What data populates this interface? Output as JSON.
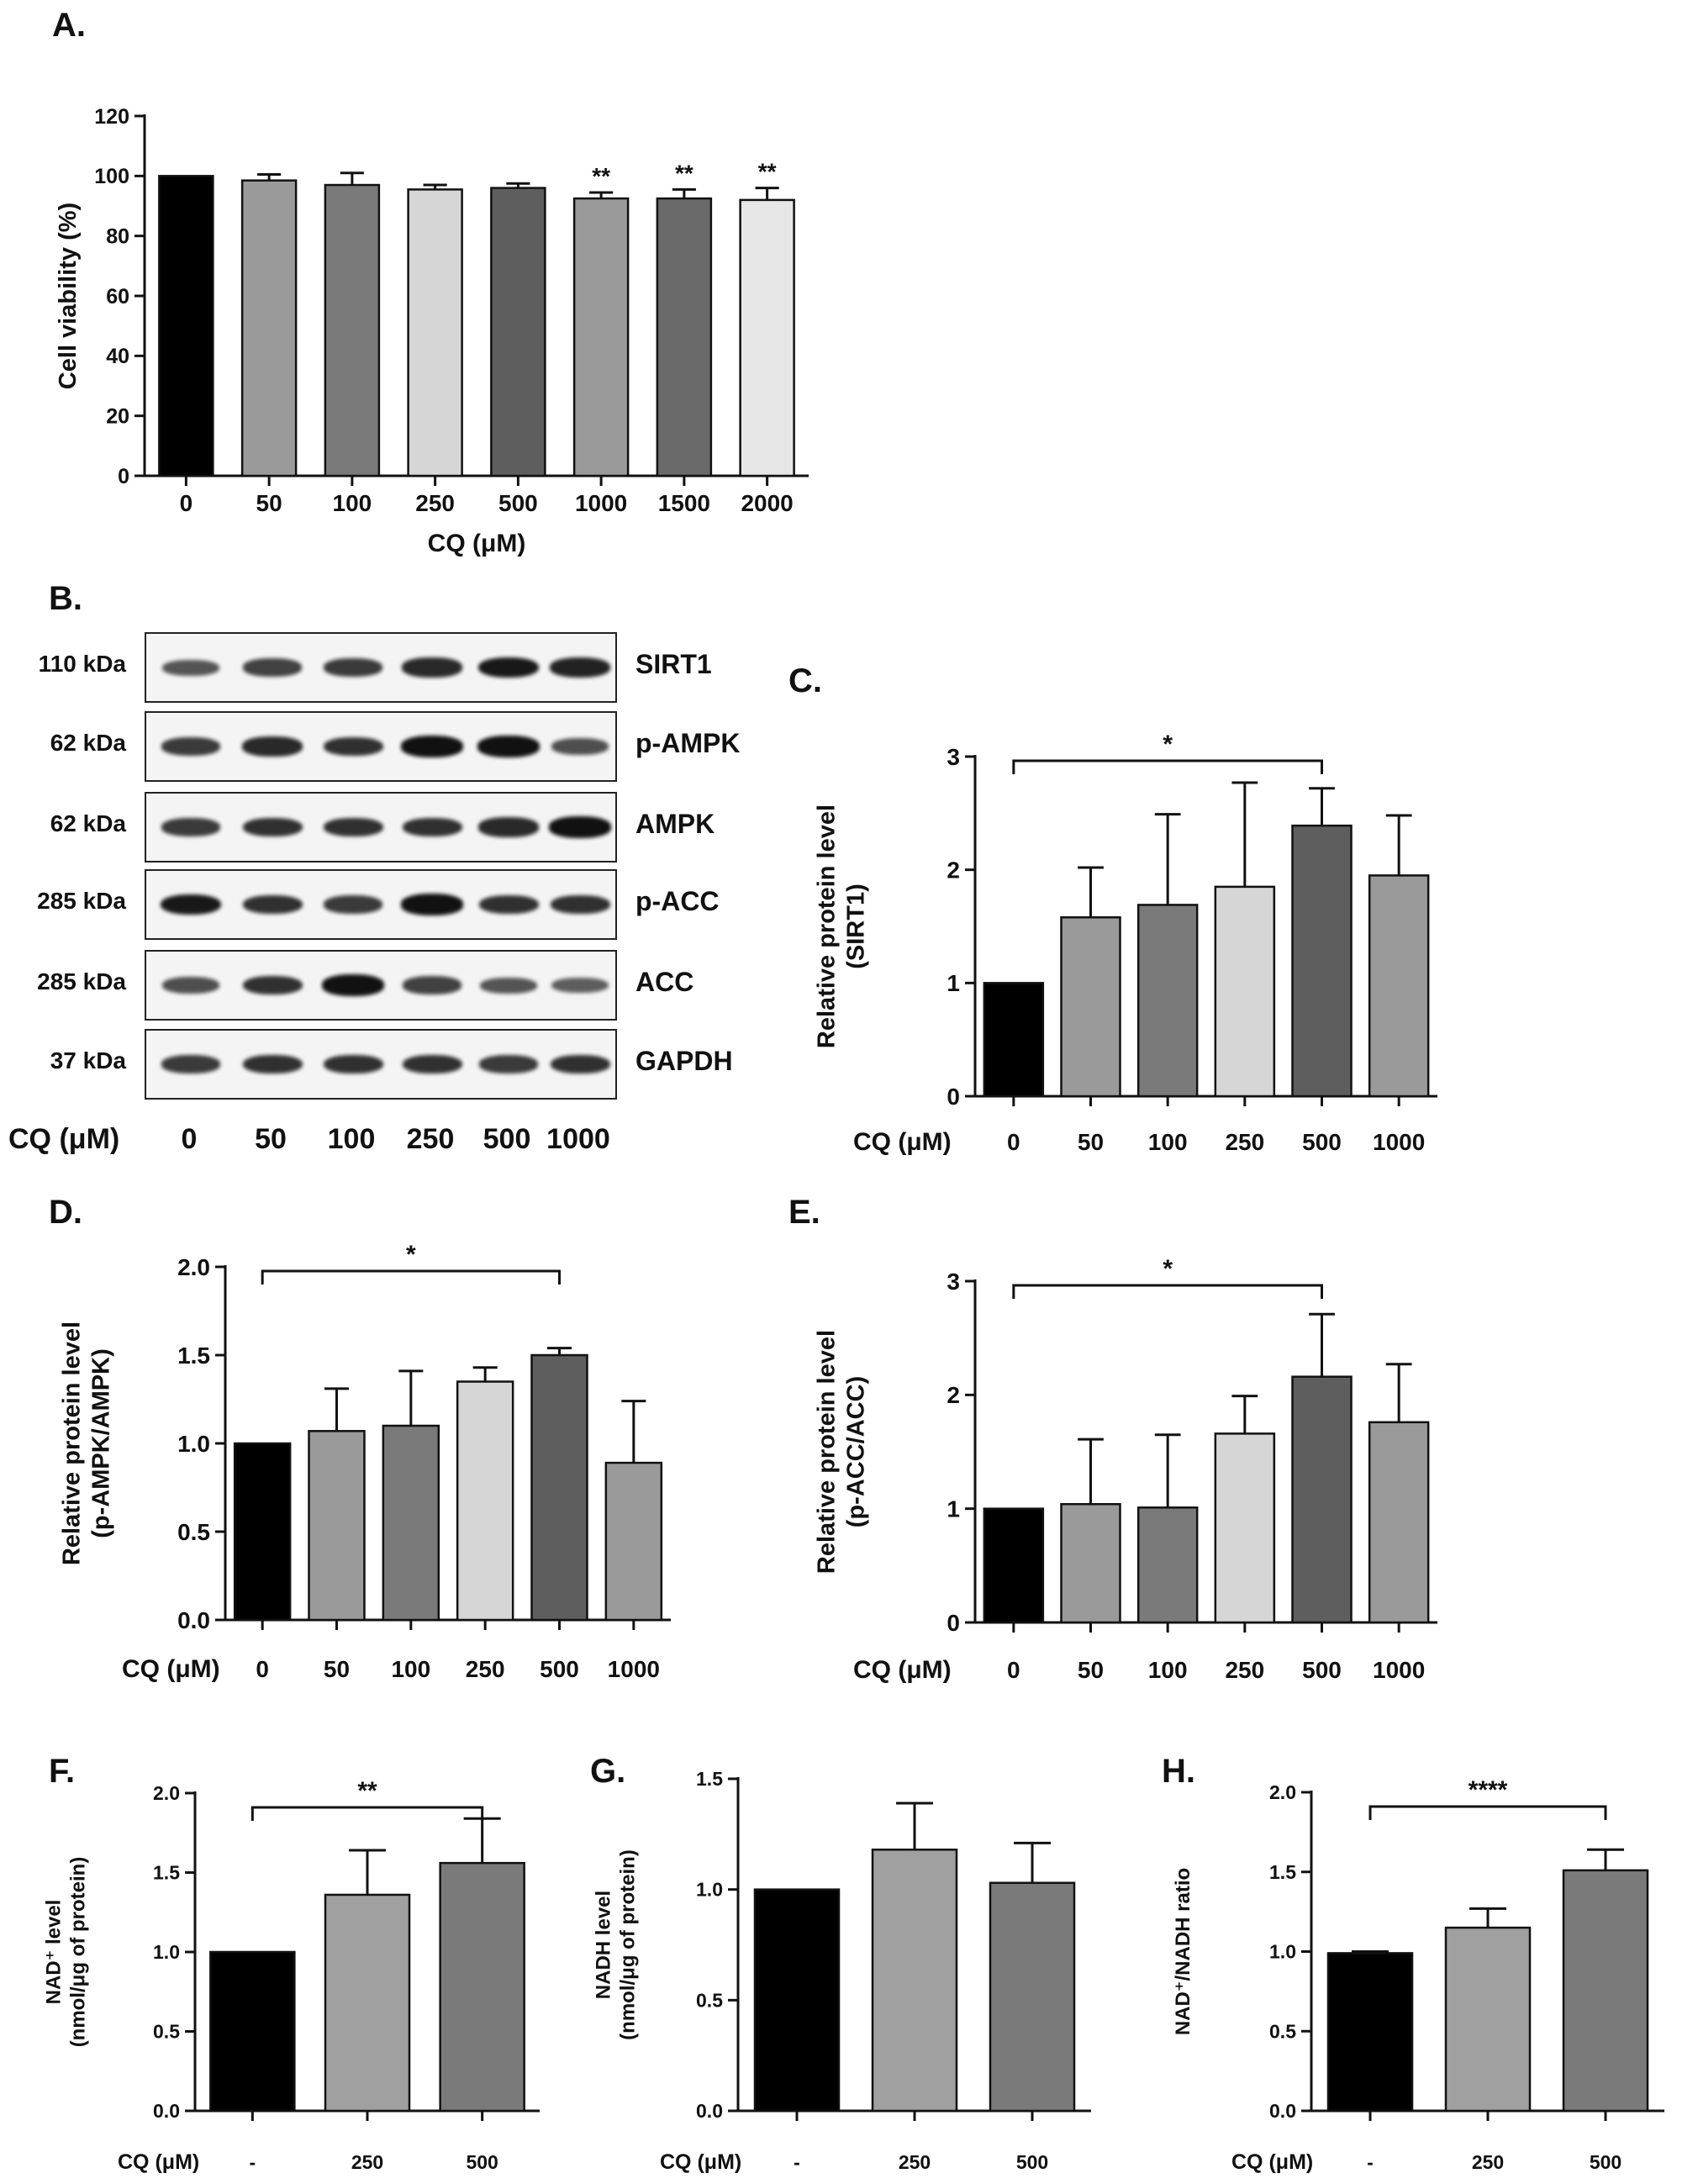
{
  "figure": {
    "panel_labels": [
      "A.",
      "B.",
      "C.",
      "D.",
      "E.",
      "F.",
      "G.",
      "H."
    ]
  },
  "colors": {
    "black": "#000000",
    "grey_medium": "#9a9a9a",
    "grey_dark": "#7a7a7a",
    "grey_light": "#d6d6d6",
    "grey_darker": "#5e5e5e",
    "grey_light2": "#e6e6e6"
  },
  "blot": {
    "mw_labels": [
      "110 kDa",
      "62 kDa",
      "62 kDa",
      "285 kDa",
      "285 kDa",
      "37 kDa"
    ],
    "proteins": [
      "SIRT1",
      "p-AMPK",
      "AMPK",
      "p-ACC",
      "ACC",
      "GAPDH"
    ],
    "x_title": "CQ (μM)",
    "lanes": [
      "0",
      "50",
      "100",
      "250",
      "500",
      "1000"
    ],
    "band_intensity": [
      [
        0.5,
        0.65,
        0.7,
        0.8,
        0.9,
        0.85
      ],
      [
        0.7,
        0.8,
        0.75,
        0.95,
        0.95,
        0.55
      ],
      [
        0.7,
        0.75,
        0.75,
        0.75,
        0.8,
        0.95
      ],
      [
        0.9,
        0.75,
        0.7,
        0.95,
        0.75,
        0.75
      ],
      [
        0.55,
        0.75,
        0.95,
        0.65,
        0.5,
        0.45
      ],
      [
        0.7,
        0.75,
        0.75,
        0.75,
        0.7,
        0.75
      ]
    ]
  },
  "chart_data": [
    {
      "id": "A",
      "type": "bar",
      "categories": [
        "0",
        "50",
        "100",
        "250",
        "500",
        "1000",
        "1500",
        "2000"
      ],
      "values": [
        100,
        98.5,
        97,
        95.5,
        96,
        92.5,
        92.5,
        92
      ],
      "errors": [
        0,
        2,
        4,
        1.5,
        1.5,
        2,
        3,
        4
      ],
      "bar_colors": [
        "#000000",
        "#9a9a9a",
        "#7a7a7a",
        "#d6d6d6",
        "#5e5e5e",
        "#9a9a9a",
        "#6a6a6a",
        "#e6e6e6"
      ],
      "annotations": [
        "",
        "",
        "",
        "",
        "",
        "**",
        "**",
        "**"
      ],
      "ylabel": "Cell viability (%)",
      "xlabel": "CQ (μM)",
      "ylim": [
        0,
        120
      ],
      "yticks": [
        "0",
        "20",
        "40",
        "60",
        "80",
        "100",
        "120"
      ]
    },
    {
      "id": "C",
      "type": "bar",
      "categories": [
        "0",
        "50",
        "100",
        "250",
        "500",
        "1000"
      ],
      "values": [
        1.0,
        1.58,
        1.69,
        1.85,
        2.39,
        1.95
      ],
      "errors": [
        0,
        0.44,
        0.8,
        0.92,
        0.33,
        0.53
      ],
      "bar_colors": [
        "#000000",
        "#9a9a9a",
        "#7a7a7a",
        "#d6d6d6",
        "#5e5e5e",
        "#9a9a9a"
      ],
      "bracket": {
        "from": 0,
        "to": 4,
        "label": "*"
      },
      "ylabel_lines": [
        "Relative protein level",
        "(SIRT1)"
      ],
      "xlabel": "CQ (μM)",
      "ylim": [
        0,
        3
      ],
      "yticks": [
        "0",
        "1",
        "2",
        "3"
      ]
    },
    {
      "id": "D",
      "type": "bar",
      "categories": [
        "0",
        "50",
        "100",
        "250",
        "500",
        "1000"
      ],
      "values": [
        1.0,
        1.07,
        1.1,
        1.35,
        1.5,
        0.89
      ],
      "errors": [
        0,
        0.24,
        0.31,
        0.08,
        0.04,
        0.35
      ],
      "bar_colors": [
        "#000000",
        "#9a9a9a",
        "#7a7a7a",
        "#d6d6d6",
        "#5e5e5e",
        "#9a9a9a"
      ],
      "bracket": {
        "from": 0,
        "to": 4,
        "label": "*"
      },
      "ylabel_lines": [
        "Relative protein level",
        "(p-AMPK/AMPK)"
      ],
      "xlabel": "CQ (μM)",
      "ylim": [
        0,
        2
      ],
      "yticks": [
        "0.0",
        "0.5",
        "1.0",
        "1.5",
        "2.0"
      ]
    },
    {
      "id": "E",
      "type": "bar",
      "categories": [
        "0",
        "50",
        "100",
        "250",
        "500",
        "1000"
      ],
      "values": [
        1.0,
        1.04,
        1.01,
        1.66,
        2.16,
        1.76
      ],
      "errors": [
        0,
        0.57,
        0.64,
        0.33,
        0.55,
        0.51
      ],
      "bar_colors": [
        "#000000",
        "#9a9a9a",
        "#7a7a7a",
        "#d6d6d6",
        "#5e5e5e",
        "#9a9a9a"
      ],
      "bracket": {
        "from": 0,
        "to": 4,
        "label": "*"
      },
      "ylabel_lines": [
        "Relative protein level",
        "(p-ACC/ACC)"
      ],
      "xlabel": "CQ (μM)",
      "ylim": [
        0,
        3
      ],
      "yticks": [
        "0",
        "1",
        "2",
        "3"
      ]
    },
    {
      "id": "F",
      "type": "bar",
      "categories": [
        "-",
        "250",
        "500"
      ],
      "values": [
        1.0,
        1.36,
        1.56
      ],
      "errors": [
        0,
        0.28,
        0.28
      ],
      "bar_colors": [
        "#000000",
        "#a0a0a0",
        "#7a7a7a"
      ],
      "bracket": {
        "from": 0,
        "to": 2,
        "label": "**"
      },
      "ylabel_lines": [
        "NAD⁺ level",
        "(nmol/μg of protein)"
      ],
      "xlabel": "CQ (μM)",
      "ylim": [
        0,
        2
      ],
      "yticks": [
        "0.0",
        "0.5",
        "1.0",
        "1.5",
        "2.0"
      ]
    },
    {
      "id": "G",
      "type": "bar",
      "categories": [
        "-",
        "250",
        "500"
      ],
      "values": [
        1.0,
        1.18,
        1.03
      ],
      "errors": [
        0,
        0.21,
        0.18
      ],
      "bar_colors": [
        "#000000",
        "#a0a0a0",
        "#7a7a7a"
      ],
      "ylabel_lines": [
        "NADH level",
        "(nmol/μg of protein)"
      ],
      "xlabel": "CQ (μM)",
      "ylim": [
        0,
        1.5
      ],
      "yticks": [
        "0.0",
        "0.5",
        "1.0",
        "1.5"
      ]
    },
    {
      "id": "H",
      "type": "bar",
      "categories": [
        "-",
        "250",
        "500"
      ],
      "values": [
        0.99,
        1.15,
        1.51
      ],
      "errors": [
        0.01,
        0.12,
        0.13
      ],
      "bar_colors": [
        "#000000",
        "#a0a0a0",
        "#7a7a7a"
      ],
      "bracket": {
        "from": 0,
        "to": 2,
        "label": "****"
      },
      "ylabel": "NAD⁺/NADH ratio",
      "xlabel": "CQ (μM)",
      "ylim": [
        0,
        2
      ],
      "yticks": [
        "0.0",
        "0.5",
        "1.0",
        "1.5",
        "2.0"
      ]
    }
  ]
}
